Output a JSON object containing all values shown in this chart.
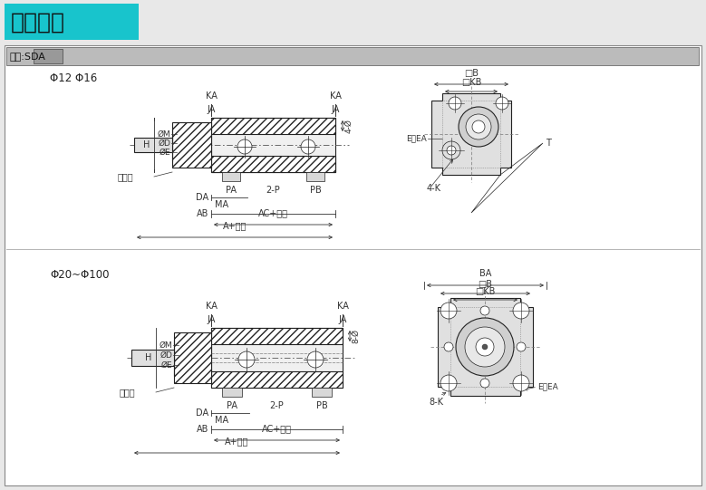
{
  "title": "外部尺寸",
  "title_bg": "#18C4CC",
  "title_color": "#111111",
  "model_label": "型號:SDA",
  "model_bg": "#cccccc",
  "bg_color": "#e8e8e8",
  "panel_bg": "#ffffff",
  "line_color": "#222222",
  "section1_label": "Φ12 Φ16",
  "section2_label": "Φ20~Φ100",
  "gray_bg": "#d8d8d8",
  "light_gray": "#eeeeee",
  "mid_gray": "#c0c0c0"
}
